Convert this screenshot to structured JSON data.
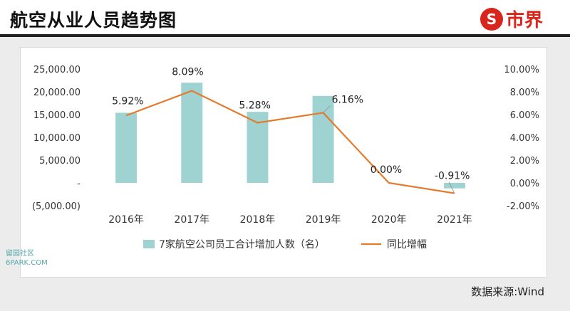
{
  "header": {
    "title": "航空从业人员趋势图",
    "logo_text": "市界",
    "logo_glyph": "S"
  },
  "source": "数据来源:Wind",
  "watermark": [
    "留园社区",
    "6PARK.COM"
  ],
  "colors": {
    "bar": "#9fd3d2",
    "line": "#e47a2c",
    "axis_text": "#333333",
    "accent": "#d9261c"
  },
  "chart_data": {
    "type": "bar+line",
    "title": "",
    "categories": [
      "2016年",
      "2017年",
      "2018年",
      "2019年",
      "2020年",
      "2021年"
    ],
    "series": [
      {
        "name": "7家航空公司员工合计增加人数（名）",
        "type": "bar",
        "axis": "left",
        "values": [
          15400,
          22000,
          15600,
          19100,
          0,
          -1200
        ]
      },
      {
        "name": "同比增幅",
        "type": "line",
        "axis": "right",
        "values": [
          5.92,
          8.09,
          5.28,
          6.16,
          0.0,
          -0.91
        ],
        "labels": [
          "5.92%",
          "8.09%",
          "5.28%",
          "6.16%",
          "0.00%",
          "-0.91%"
        ]
      }
    ],
    "left_axis": {
      "ylim": [
        -5000,
        25000
      ],
      "ticks": [
        "(5,000.00)",
        "-",
        "5,000.00",
        "10,000.00",
        "15,000.00",
        "20,000.00",
        "25,000.00"
      ]
    },
    "right_axis": {
      "ylim": [
        -2,
        10
      ],
      "ticks": [
        "-2.00%",
        "0.00%",
        "2.00%",
        "4.00%",
        "6.00%",
        "8.00%",
        "10.00%"
      ]
    },
    "grid": false,
    "legend": "bottom"
  }
}
